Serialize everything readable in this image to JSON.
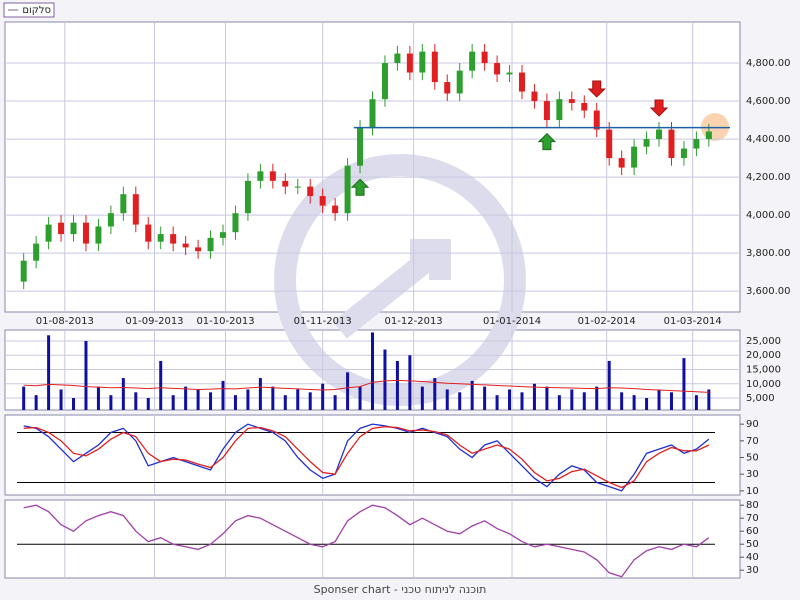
{
  "legend_label": "סלקום",
  "footer": "Sponser chart - תוכנה לניתוח טכני",
  "chart_data": [
    {
      "type": "candlestick",
      "xlim": [
        -1.5,
        57.5
      ],
      "xticks": [
        {
          "value": 3.3,
          "label": "01-08-2013"
        },
        {
          "value": 10.5,
          "label": "01-09-2013"
        },
        {
          "value": 16.2,
          "label": "01-10-2013"
        },
        {
          "value": 24,
          "label": "01-11-2013"
        },
        {
          "value": 31.3,
          "label": "01-12-2013"
        },
        {
          "value": 39.2,
          "label": "01-01-2014"
        },
        {
          "value": 46.8,
          "label": "01-02-2014"
        },
        {
          "value": 53.7,
          "label": "01-03-2014"
        }
      ],
      "ylim": [
        3490,
        5016
      ],
      "yticks": [
        {
          "value": 3600,
          "label": "3,600.00"
        },
        {
          "value": 3800,
          "label": "3,800.00"
        },
        {
          "value": 4000,
          "label": "4,000.00"
        },
        {
          "value": 4200,
          "label": "4,200.00"
        },
        {
          "value": 4400,
          "label": "4,400.00"
        },
        {
          "value": 4600,
          "label": "4,600.00"
        },
        {
          "value": 4800,
          "label": "4,800.00"
        }
      ],
      "grid": true,
      "up_color": "#2e9e2e",
      "down_color": "#e02020",
      "open": [
        3650,
        3760,
        3860,
        3960,
        3900,
        3960,
        3850,
        3940,
        4010,
        4110,
        3950,
        3860,
        3900,
        3850,
        3830,
        3810,
        3880,
        3910,
        4010,
        4180,
        4230,
        4180,
        4150,
        4150,
        4100,
        4050,
        4010,
        4260,
        4460,
        4610,
        4800,
        4850,
        4750,
        4860,
        4700,
        4640,
        4760,
        4860,
        4800,
        4740,
        4750,
        4650,
        4600,
        4500,
        4610,
        4590,
        4550,
        4450,
        4300,
        4250,
        4360,
        4400,
        4450,
        4300,
        4350,
        4400
      ],
      "high": [
        3800,
        3890,
        3990,
        4000,
        4000,
        4000,
        3980,
        4050,
        4150,
        4150,
        3990,
        3940,
        3940,
        3890,
        3870,
        3920,
        3950,
        4050,
        4220,
        4270,
        4270,
        4220,
        4190,
        4190,
        4140,
        4090,
        4300,
        4500,
        4650,
        4840,
        4890,
        4890,
        4900,
        4900,
        4740,
        4800,
        4900,
        4900,
        4840,
        4790,
        4790,
        4690,
        4640,
        4650,
        4650,
        4630,
        4590,
        4490,
        4340,
        4400,
        4440,
        4490,
        4490,
        4390,
        4440,
        4480
      ],
      "low": [
        3610,
        3720,
        3820,
        3860,
        3860,
        3810,
        3810,
        3900,
        3970,
        3910,
        3820,
        3820,
        3810,
        3790,
        3770,
        3770,
        3840,
        3870,
        3970,
        4140,
        4140,
        4110,
        4110,
        4060,
        4010,
        3970,
        3970,
        4220,
        4420,
        4570,
        4760,
        4710,
        4710,
        4660,
        4600,
        4600,
        4720,
        4760,
        4700,
        4700,
        4610,
        4560,
        4460,
        4460,
        4550,
        4510,
        4410,
        4260,
        4210,
        4210,
        4320,
        4360,
        4260,
        4260,
        4310,
        4360
      ],
      "close": [
        3760,
        3850,
        3950,
        3900,
        3960,
        3850,
        3940,
        4010,
        4110,
        3950,
        3860,
        3900,
        3850,
        3830,
        3810,
        3880,
        3910,
        4010,
        4180,
        4230,
        4180,
        4150,
        4150,
        4100,
        4050,
        4010,
        4260,
        4460,
        4610,
        4800,
        4850,
        4750,
        4860,
        4700,
        4640,
        4760,
        4860,
        4800,
        4740,
        4750,
        4650,
        4600,
        4500,
        4610,
        4590,
        4550,
        4450,
        4300,
        4250,
        4360,
        4400,
        4450,
        4300,
        4350,
        4400,
        4440
      ],
      "support_line": 4460,
      "support_start": 26.5,
      "support_color": "#1f5fa8",
      "buy_signals": [
        27,
        42
      ],
      "sell_signals": [
        46,
        51
      ]
    },
    {
      "type": "bar",
      "xlim": [
        -1.5,
        57.5
      ],
      "xticks": [
        3.3,
        10.5,
        16.2,
        24,
        31.3,
        39.2,
        46.8,
        53.7
      ],
      "ylim": [
        800,
        28850
      ],
      "yticks": [
        {
          "value": 5000,
          "label": "5,000"
        },
        {
          "value": 10000,
          "label": "10,000"
        },
        {
          "value": 15000,
          "label": "15,000"
        },
        {
          "value": 20000,
          "label": "20,000"
        },
        {
          "value": 25000,
          "label": "25,000"
        }
      ],
      "grid": true,
      "color": "#1010a0",
      "values": [
        9000,
        6000,
        27000,
        8000,
        5000,
        25000,
        9000,
        6000,
        12000,
        7000,
        5000,
        18000,
        6000,
        9000,
        8000,
        7000,
        11000,
        6000,
        8000,
        12000,
        9000,
        6000,
        8000,
        7000,
        10000,
        6000,
        14000,
        9000,
        28000,
        22000,
        18000,
        20000,
        9000,
        12000,
        8000,
        7000,
        11000,
        9000,
        6000,
        8000,
        7000,
        10000,
        9000,
        6000,
        8000,
        7000,
        9000,
        18000,
        7000,
        6000,
        5000,
        8000,
        7000,
        19000,
        6000,
        8000
      ],
      "moving_average": [
        9500,
        9300,
        9800,
        9600,
        9400,
        9000,
        8800,
        8600,
        8700,
        8500,
        8300,
        8600,
        8400,
        8200,
        8000,
        8100,
        8300,
        8200,
        8500,
        8800,
        8600,
        8400,
        8200,
        8000,
        7800,
        8000,
        8600,
        9000,
        10500,
        11000,
        11200,
        11000,
        10800,
        10500,
        10200,
        10000,
        9800,
        9600,
        9400,
        9200,
        9000,
        8800,
        8700,
        8600,
        8500,
        8400,
        8300,
        8600,
        8500,
        8300,
        8000,
        7800,
        7600,
        7400,
        7200,
        7000
      ],
      "ma_color": "#e02020"
    },
    {
      "type": "line",
      "xlim": [
        -1.5,
        57.5
      ],
      "xticks": [
        3.3,
        10.5,
        16.2,
        24,
        31.3,
        39.2,
        46.8,
        53.7
      ],
      "ylim": [
        5,
        101
      ],
      "yticks": [
        10,
        30,
        50,
        70,
        90
      ],
      "levels": [
        20,
        80
      ],
      "series": [
        {
          "color": "#2030d0",
          "values": [
            88,
            85,
            75,
            60,
            45,
            55,
            65,
            80,
            85,
            70,
            40,
            45,
            50,
            45,
            40,
            35,
            60,
            80,
            90,
            85,
            80,
            70,
            50,
            35,
            25,
            30,
            70,
            85,
            90,
            88,
            85,
            80,
            85,
            80,
            75,
            60,
            50,
            65,
            70,
            55,
            40,
            25,
            15,
            30,
            40,
            35,
            20,
            15,
            10,
            30,
            55,
            60,
            65,
            55,
            60,
            72
          ]
        },
        {
          "color": "#e02020",
          "values": [
            85,
            86,
            80,
            70,
            55,
            52,
            60,
            72,
            80,
            75,
            55,
            45,
            48,
            47,
            42,
            38,
            50,
            70,
            85,
            86,
            82,
            75,
            60,
            45,
            32,
            30,
            55,
            75,
            85,
            87,
            86,
            82,
            83,
            81,
            77,
            65,
            55,
            60,
            65,
            60,
            48,
            32,
            22,
            25,
            33,
            36,
            28,
            20,
            14,
            22,
            45,
            55,
            62,
            58,
            58,
            65
          ]
        }
      ]
    },
    {
      "type": "line",
      "xlim": [
        -1.5,
        57.5
      ],
      "xticks": [
        3.3,
        10.5,
        16.2,
        24,
        31.3,
        39.2,
        46.8,
        53.7
      ],
      "ylim": [
        24,
        84
      ],
      "yticks": [
        30,
        40,
        50,
        60,
        70,
        80
      ],
      "levels": [
        50
      ],
      "series": [
        {
          "color": "#a040a8",
          "values": [
            78,
            80,
            75,
            65,
            60,
            68,
            72,
            75,
            72,
            60,
            52,
            55,
            50,
            48,
            46,
            50,
            58,
            68,
            72,
            70,
            65,
            60,
            55,
            50,
            48,
            52,
            68,
            75,
            80,
            78,
            72,
            65,
            70,
            65,
            60,
            58,
            64,
            68,
            62,
            58,
            52,
            48,
            50,
            48,
            46,
            44,
            38,
            28,
            25,
            38,
            45,
            48,
            46,
            50,
            48,
            55
          ]
        }
      ]
    }
  ]
}
